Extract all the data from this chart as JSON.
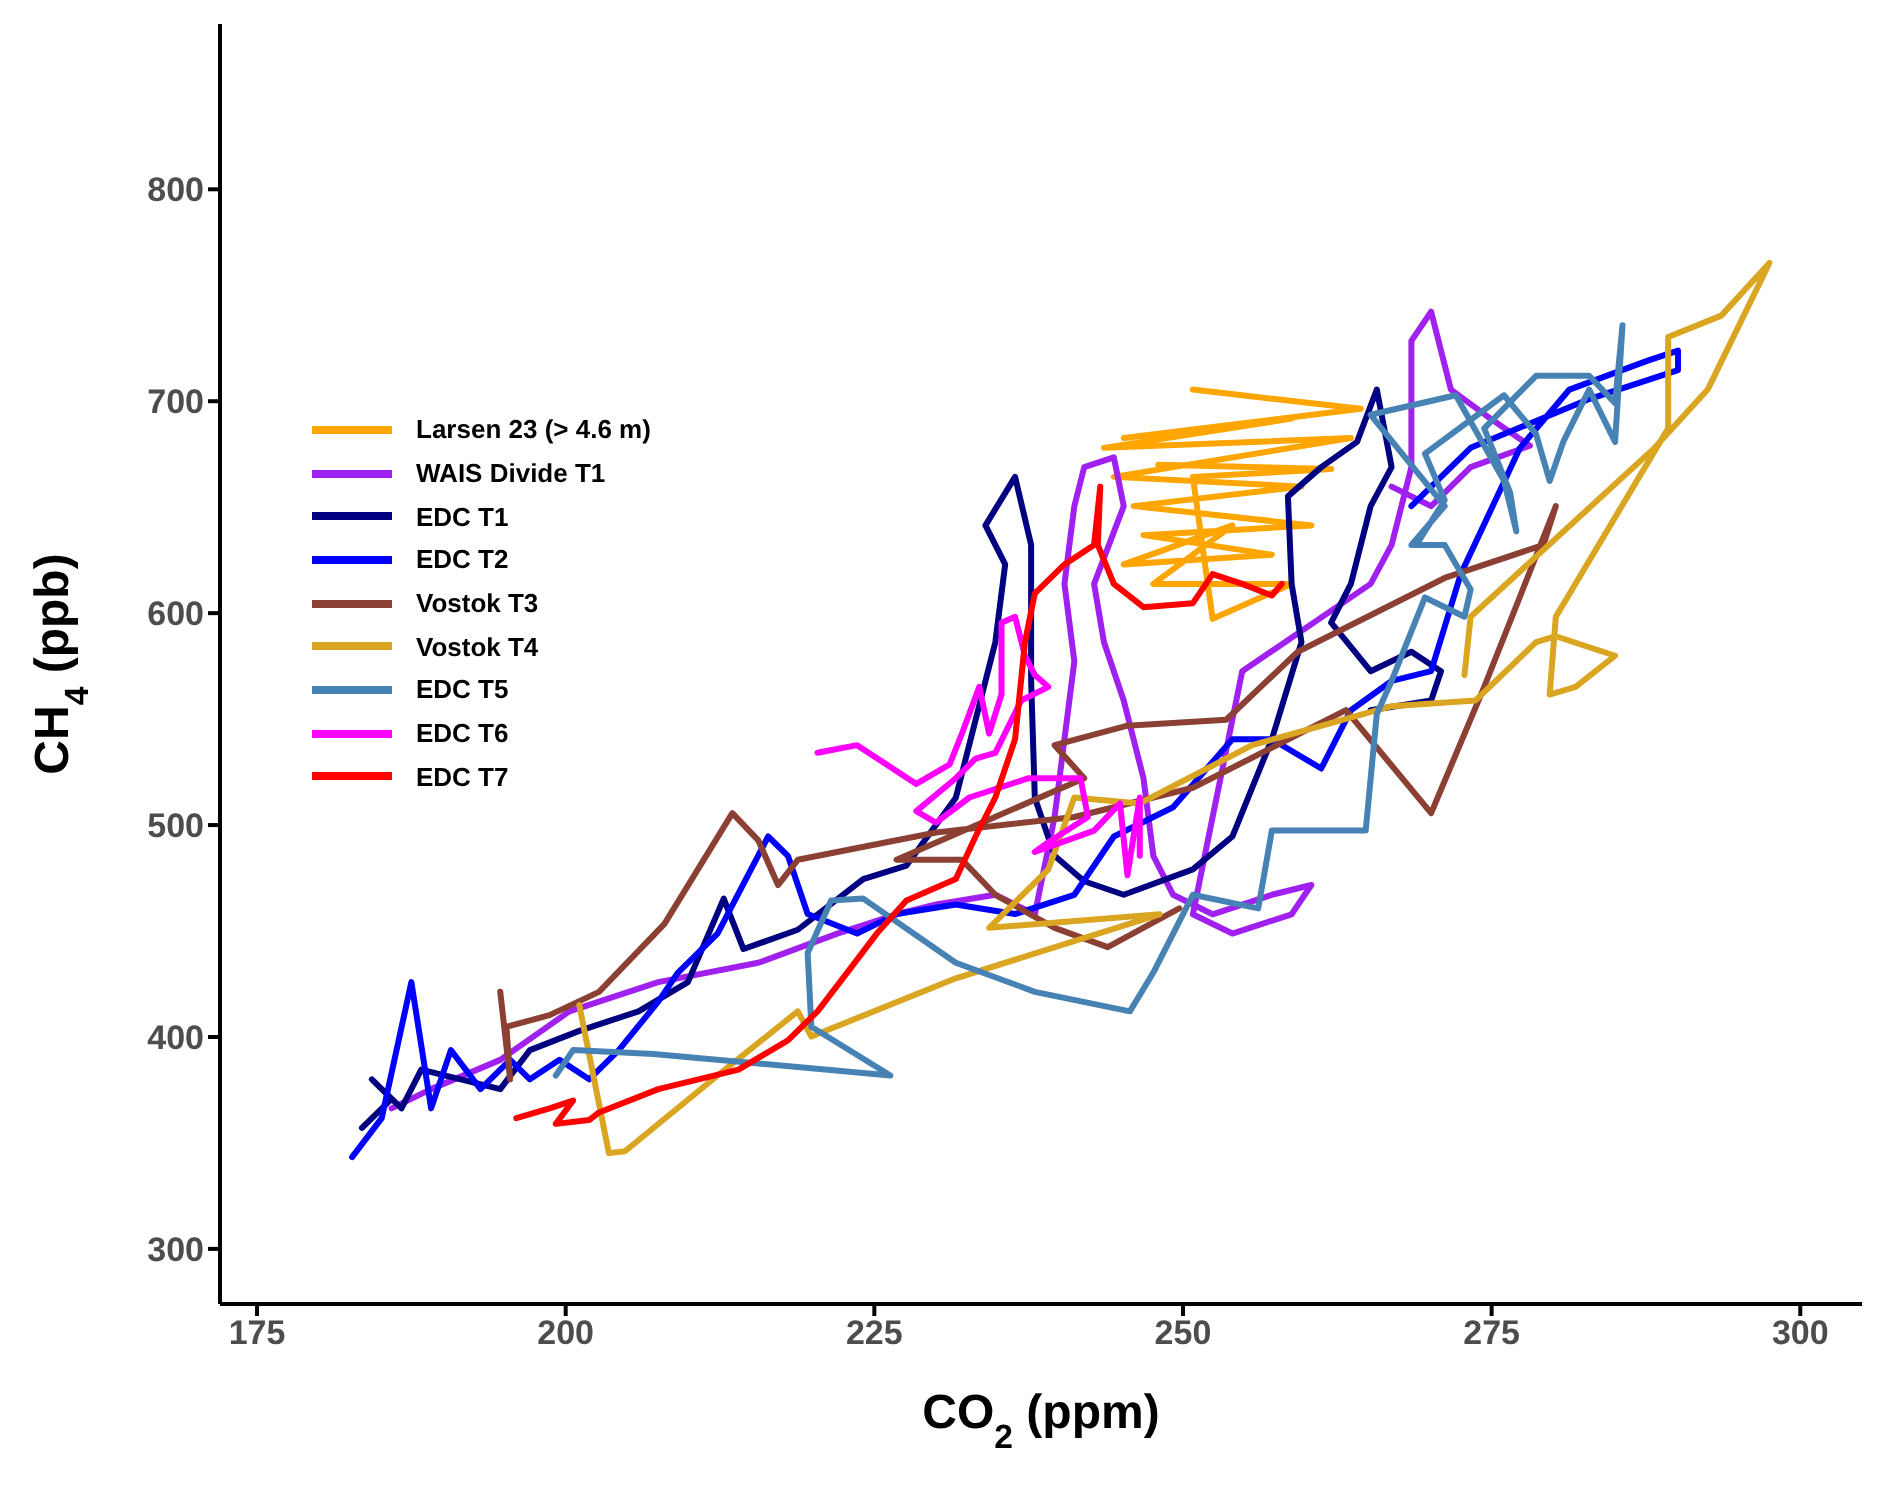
{
  "chart_data": {
    "type": "line",
    "xlabel": "CO$_{2}$ (ppm)",
    "ylabel": "CH$_{4}$ (ppb)",
    "xlim": [
      172,
      305
    ],
    "ylim": [
      274,
      878
    ],
    "xticks": [
      175,
      200,
      225,
      250,
      275,
      300
    ],
    "yticks": [
      300,
      400,
      500,
      600,
      700,
      800
    ],
    "grid": false,
    "legend": "top left",
    "marker": "none",
    "line_style": "solid",
    "series": [
      {
        "name": "Larsen 23 (> 4.6 m)",
        "color": "#ffa500",
        "x": [
          250.8,
          264.4,
          245.2,
          258.8,
          243.6,
          263.6,
          244.4,
          259.6,
          246,
          260.4,
          246.8,
          257.2,
          245.2,
          254,
          247.6,
          258.8,
          252.4,
          250.8,
          262,
          248
        ],
        "values": [
          705.5,
          696.4,
          682.6,
          691.8,
          678,
          682.6,
          664.3,
          659.7,
          650.5,
          641.4,
          636.8,
          627.6,
          623,
          641.4,
          613.8,
          613.8,
          597.3,
          664.3,
          668,
          670
        ]
      },
      {
        "name": "WAIS Divide T1",
        "color": "#a020f0",
        "x": [
          185.9,
          189.1,
          194.7,
          200.3,
          207.5,
          215.6,
          222,
          226.8,
          230,
          234.8,
          238,
          239.6,
          240.4,
          241.2,
          240.4,
          241.2,
          242,
          244.4,
          245.2,
          242.8,
          243.6,
          245.2,
          246.8,
          247.6,
          249.2,
          252.4,
          257.2,
          260.4,
          258.8,
          254,
          250.8,
          254.8,
          265.2,
          266.9,
          268.5,
          268.5,
          270.1,
          271.7,
          274.9,
          278.1,
          273.3,
          270.1,
          266.9
        ],
        "values": [
          366.3,
          375.4,
          389.2,
          412.1,
          425.9,
          435,
          448.8,
          457.9,
          462.5,
          467.1,
          457.9,
          503.8,
          540.5,
          577.2,
          613.8,
          650.5,
          668.9,
          673.5,
          650.5,
          613.8,
          586.3,
          558.8,
          522.1,
          485.5,
          467.1,
          457.9,
          467.1,
          471.7,
          457.9,
          448.8,
          457.9,
          572.6,
          613.8,
          632.2,
          668.9,
          728.5,
          742.2,
          705.5,
          691.8,
          679,
          668.9,
          650.5,
          659.7
        ]
      },
      {
        "name": "EDC T1",
        "color": "#000080",
        "x": [
          183.5,
          185.9,
          184.3,
          186.7,
          188.3,
          191.5,
          194.7,
          197.1,
          201.1,
          205.9,
          209.9,
          212.8,
          214.4,
          218.8,
          224.1,
          227.6,
          231.6,
          234.8,
          235.6,
          234,
          236.4,
          237.7,
          237.7,
          238,
          239.6,
          242,
          245.2,
          250.8,
          254,
          257.2,
          259.6,
          258.8,
          258.5,
          261.2,
          264.1,
          265.7,
          266.9,
          265.2,
          263.6,
          262,
          265.2,
          268.5,
          270.9,
          270.1,
          265.2
        ],
        "values": [
          357.1,
          370.8,
          380,
          366.3,
          384.6,
          380,
          375.4,
          393.8,
          402.9,
          412.1,
          425.9,
          465.3,
          441.5,
          450.6,
          474.5,
          480.9,
          512.9,
          586.3,
          623,
          641.4,
          664.3,
          632.2,
          568,
          512.9,
          485.5,
          473.5,
          467.1,
          479.1,
          494.6,
          540.5,
          586.3,
          613.8,
          655.1,
          668.9,
          680.8,
          705.5,
          668.9,
          650.5,
          613.8,
          595.5,
          572.6,
          581.8,
          572.6,
          558.8,
          554.2
        ]
      },
      {
        "name": "EDC T2",
        "color": "#0000ff",
        "x": [
          182.7,
          185.1,
          187.5,
          189.1,
          190.7,
          193.1,
          195.5,
          197.1,
          199.5,
          201.9,
          204.3,
          207.5,
          209.1,
          212.3,
          216.4,
          218,
          219.6,
          223.6,
          226.8,
          231.6,
          236.4,
          241.2,
          244.4,
          249.2,
          254,
          257.2,
          261.2,
          263.6,
          266.9,
          270.1,
          272.5,
          277.3,
          281.3,
          287.7,
          290.1,
          290.1,
          282.9,
          273.3,
          270.1,
          268.5
        ],
        "values": [
          343.3,
          361.7,
          425.9,
          366.3,
          393.8,
          375.4,
          389.2,
          380,
          389.2,
          380,
          393.8,
          416.7,
          430.4,
          448.8,
          494.6,
          485.5,
          458,
          448.8,
          458,
          462.5,
          458,
          467.1,
          494.6,
          508.4,
          540.5,
          540.5,
          526.7,
          554.2,
          568,
          572.6,
          618.4,
          678,
          705.5,
          719.3,
          723.9,
          714.7,
          701,
          678,
          659.7,
          650.5
        ]
      },
      {
        "name": "Vostok T3",
        "color": "#8b4033",
        "x": [
          194.7,
          195.5,
          195.2,
          198.7,
          202.7,
          208,
          213.5,
          215.6,
          217.2,
          218.8,
          230,
          241.2,
          250.8,
          263.2,
          270.1,
          274.4,
          280.2,
          279.2,
          271.2,
          259.3,
          253.5,
          245.5,
          239.6,
          242,
          226.8,
          232.1,
          234.8,
          239.6,
          243.9,
          249.7
        ],
        "values": [
          421.3,
          380,
          404.8,
          410.3,
          421.3,
          453.4,
          505.6,
          492.8,
          471.7,
          483.6,
          496.5,
          503.8,
          517.6,
          554.2,
          505.6,
          565.2,
          650.5,
          632.2,
          616.6,
          581.8,
          549.7,
          546.9,
          537.7,
          522.1,
          483.6,
          483.6,
          467.1,
          451.5,
          442.4,
          460.7
        ]
      },
      {
        "name": "Vostok T4",
        "color": "#daa520",
        "x": [
          201.1,
          203.5,
          204.8,
          212.3,
          218.8,
          219.9,
          231.6,
          248.1,
          234.3,
          239.1,
          241.2,
          246.5,
          255.6,
          266.9,
          273.7,
          278.6,
          280.2,
          285,
          281.8,
          279.7,
          280.2,
          289.3,
          289.3,
          293.6,
          297.5,
          292.5,
          288.2,
          273.3,
          272.8
        ],
        "values": [
          415.1,
          345.2,
          346.1,
          381.8,
          412.1,
          400.2,
          427.7,
          457.9,
          451.5,
          479.1,
          513,
          510.2,
          537.7,
          556.1,
          558.8,
          586.3,
          589.1,
          579.9,
          565.2,
          561.6,
          598.3,
          687.2,
          730.3,
          740.4,
          765.2,
          705.5,
          678,
          598.3,
          570.8
        ]
      },
      {
        "name": "EDC T5",
        "color": "#4682b4",
        "x": [
          199.2,
          200.6,
          207.1,
          226.3,
          219.9,
          219.6,
          221.5,
          224.1,
          231.6,
          238,
          245.7,
          247.6,
          250.8,
          256.1,
          257.2,
          264.8,
          265.7,
          266.9,
          269.6,
          272.8,
          273.3,
          271.2,
          268.5,
          271.2,
          265.2,
          272.1,
          276,
          277,
          276.5,
          274.4,
          278.6,
          282.9,
          285,
          285.6,
          285,
          282.9,
          280.8,
          279.7,
          278.6,
          276,
          269.6,
          271.2,
          268.9
        ],
        "values": [
          381.8,
          393.8,
          392,
          381.8,
          404.8,
          439.6,
          464.4,
          465.3,
          435,
          421.3,
          412.1,
          430.4,
          467.1,
          460.7,
          497.4,
          497.4,
          552.4,
          568,
          607.4,
          598.3,
          611.1,
          632.2,
          632.2,
          650.5,
          693.6,
          702.8,
          662.4,
          638.6,
          656.9,
          687.2,
          712,
          712,
          699.1,
          735.8,
          680.8,
          705.5,
          680.8,
          662.4,
          684.5,
          702.8,
          675.3,
          653.3,
          632.2
        ]
      },
      {
        "name": "EDC T6",
        "color": "#ff00ff",
        "x": [
          220.4,
          223.6,
          228.4,
          231.1,
          232.1,
          233.5,
          234.3,
          235.3,
          235.3,
          236.4,
          237.2,
          238,
          239.1,
          236.9,
          234.8,
          233.2,
          231.6,
          228.4,
          230,
          232.7,
          237.5,
          241.7,
          242.3,
          239.1,
          238,
          242.8,
          244.9,
          245.5,
          246.5,
          246.5
        ],
        "values": [
          534.1,
          537.7,
          519.4,
          528.6,
          543.2,
          565.2,
          543.2,
          561.6,
          595.5,
          598.3,
          579.9,
          570.8,
          565.2,
          558.8,
          534.1,
          531.3,
          522.1,
          506.6,
          501.1,
          513,
          522.1,
          522.1,
          503.8,
          491.9,
          487.3,
          497.4,
          510.2,
          476.3,
          513,
          485.5
        ]
      },
      {
        "name": "EDC T7",
        "color": "#ff0000",
        "x": [
          196,
          198.7,
          200.6,
          199.2,
          201.9,
          202.7,
          207.5,
          214,
          218,
          220.4,
          222.8,
          225.2,
          227.6,
          231.6,
          233.2,
          234.8,
          236.4,
          237.2,
          238,
          240.4,
          242.8,
          243.3,
          243.1,
          244.4,
          246.8,
          250.8,
          252.4,
          254.8,
          257.2,
          258
        ],
        "values": [
          361.7,
          366.3,
          370,
          359,
          360.8,
          364.4,
          375.4,
          384.6,
          398.4,
          412.1,
          430.4,
          448.8,
          464.4,
          474.5,
          494.6,
          513,
          540.5,
          586.3,
          609.3,
          623,
          632.2,
          659.7,
          632.2,
          613.8,
          602.8,
          604.7,
          618.4,
          613.8,
          608.3,
          613.8
        ]
      }
    ]
  }
}
